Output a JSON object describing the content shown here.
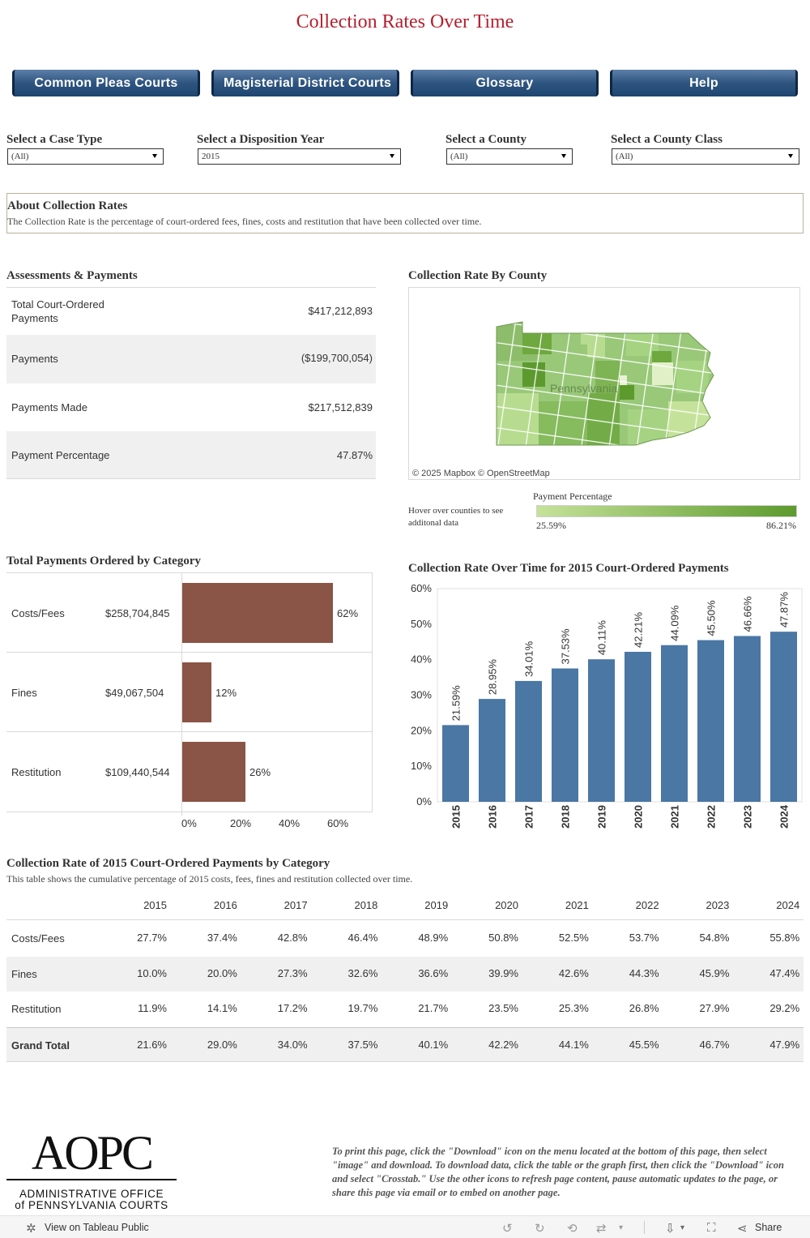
{
  "page": {
    "title": "Collection Rates Over Time"
  },
  "nav": [
    {
      "label": "Common Pleas Courts"
    },
    {
      "label": "Magisterial District Courts"
    },
    {
      "label": "Glossary"
    },
    {
      "label": "Help"
    }
  ],
  "filters": [
    {
      "label": "Select a Case Type",
      "value": "(All)"
    },
    {
      "label": "Select a Disposition Year",
      "value": "2015"
    },
    {
      "label": "Select a County",
      "value": "(All)"
    },
    {
      "label": "Select a County Class",
      "value": "(All)"
    }
  ],
  "about": {
    "title": "About Collection Rates",
    "text": "The Collection Rate is the percentage of court-ordered fees, fines, costs and restitution that have been collected over time."
  },
  "assessments": {
    "title": "Assessments & Payments",
    "rows": [
      {
        "label": "Total Court-Ordered Payments",
        "value": "$417,212,893"
      },
      {
        "label": "Payments",
        "value": "($199,700,054)"
      },
      {
        "label": "Payments Made",
        "value": "$217,512,839"
      },
      {
        "label": "Payment Percentage",
        "value": "47.87%"
      }
    ]
  },
  "map": {
    "title": "Collection Rate By County",
    "state_label": "Pennsylvania",
    "attribution": "© 2025 Mapbox  © OpenStreetMap",
    "hover_hint": "Hover over counties to see additonal data",
    "legend_title": "Payment Percentage",
    "legend_min": "25.59%",
    "legend_max": "86.21%",
    "colors": {
      "low": "#c5e29a",
      "high": "#5d9a2e"
    }
  },
  "category": {
    "title": "Total Payments Ordered by Category",
    "rows": [
      {
        "name": "Costs/Fees",
        "value": "$258,704,845",
        "pct_label": "62%",
        "pct": 62
      },
      {
        "name": "Fines",
        "value": "$49,067,504",
        "pct_label": "12%",
        "pct": 12
      },
      {
        "name": "Restitution",
        "value": "$109,440,544",
        "pct_label": "26%",
        "pct": 26
      }
    ],
    "axis_ticks": [
      "0%",
      "20%",
      "40%",
      "60%"
    ],
    "bar_color": "#8a5446"
  },
  "chart_data": {
    "type": "bar",
    "title": "Collection Rate Over Time for 2015 Court-Ordered Payments",
    "categories": [
      "2015",
      "2016",
      "2017",
      "2018",
      "2019",
      "2020",
      "2021",
      "2022",
      "2023",
      "2024"
    ],
    "values": [
      21.59,
      28.95,
      34.01,
      37.53,
      40.11,
      42.21,
      44.09,
      45.5,
      46.66,
      47.87
    ],
    "labels": [
      "21.59%",
      "28.95%",
      "34.01%",
      "37.53%",
      "40.11%",
      "42.21%",
      "44.09%",
      "45.50%",
      "46.66%",
      "47.87%"
    ],
    "y_ticks": [
      "0%",
      "10%",
      "20%",
      "30%",
      "40%",
      "50%",
      "60%"
    ],
    "ylim": [
      0,
      60
    ],
    "xlabel": "",
    "ylabel": "",
    "grid": false,
    "color": "#4a77a4"
  },
  "table": {
    "title": "Collection Rate of 2015 Court-Ordered Payments by Category",
    "subtitle": "This table shows the cumulative percentage of 2015 costs, fees, fines and restitution collected over time.",
    "columns": [
      "2015",
      "2016",
      "2017",
      "2018",
      "2019",
      "2020",
      "2021",
      "2022",
      "2023",
      "2024"
    ],
    "rows": [
      {
        "label": "Costs/Fees",
        "values": [
          "27.7%",
          "37.4%",
          "42.8%",
          "46.4%",
          "48.9%",
          "50.8%",
          "52.5%",
          "53.7%",
          "54.8%",
          "55.8%"
        ]
      },
      {
        "label": "Fines",
        "values": [
          "10.0%",
          "20.0%",
          "27.3%",
          "32.6%",
          "36.6%",
          "39.9%",
          "42.6%",
          "44.3%",
          "45.9%",
          "47.4%"
        ]
      },
      {
        "label": "Restitution",
        "values": [
          "11.9%",
          "14.1%",
          "17.2%",
          "19.7%",
          "21.7%",
          "23.5%",
          "25.3%",
          "26.8%",
          "27.9%",
          "29.2%"
        ]
      },
      {
        "label": "Grand Total",
        "values": [
          "21.6%",
          "29.0%",
          "34.0%",
          "37.5%",
          "40.1%",
          "42.2%",
          "44.1%",
          "45.5%",
          "46.7%",
          "47.9%"
        ]
      }
    ]
  },
  "logo": {
    "name": "AOPC",
    "line1": "ADMINISTRATIVE OFFICE",
    "line2": "of PENNSYLVANIA COURTS"
  },
  "footer_note": "To print this page, click the \"Download\" icon on the menu located at the bottom of this page, then select \"image\" and download. To download data, click the table or the graph first, then click the \"Download\" icon and select \"Crosstab.\" Use the other icons to refresh page content, pause automatic updates to the page, or share this page via email or to embed on another page.",
  "toolbar": {
    "view_label": "View on Tableau Public",
    "share_label": "Share"
  }
}
